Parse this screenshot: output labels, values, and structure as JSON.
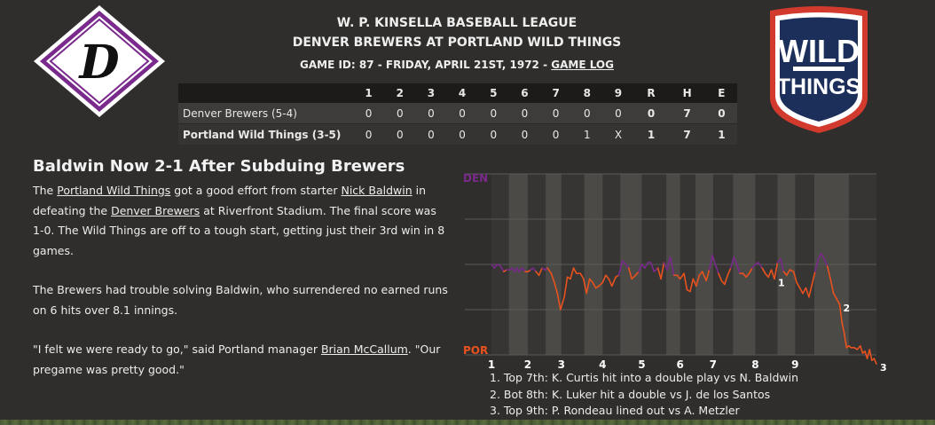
{
  "header": {
    "league": "W. P. KINSELLA BASEBALL LEAGUE",
    "matchup": "DENVER BREWERS AT PORTLAND WILD THINGS",
    "game_info": "GAME ID: 87 - FRIDAY, APRIL 21ST, 1972 -",
    "game_log_link": "GAME LOG"
  },
  "logos": {
    "away_letter": "D",
    "home_line1": "WILD",
    "home_line2": "THINGS"
  },
  "colors": {
    "away_purple": "#7a2a8c",
    "home_orange": "#e8521e",
    "home_navy": "#1c2f5a",
    "home_red": "#d23a2e"
  },
  "linescore": {
    "columns": [
      "1",
      "2",
      "3",
      "4",
      "5",
      "6",
      "7",
      "8",
      "9",
      "R",
      "H",
      "E"
    ],
    "rows": [
      {
        "team": "Denver Brewers (5-4)",
        "innings": [
          "0",
          "0",
          "0",
          "0",
          "0",
          "0",
          "0",
          "0",
          "0"
        ],
        "r": "0",
        "h": "7",
        "e": "0"
      },
      {
        "team": "Portland Wild Things (3-5)",
        "innings": [
          "0",
          "0",
          "0",
          "0",
          "0",
          "0",
          "0",
          "1",
          "X"
        ],
        "r": "1",
        "h": "7",
        "e": "1"
      }
    ]
  },
  "story": {
    "headline": "Baldwin Now 2-1 After Subduing Brewers",
    "p1": {
      "t1": "The ",
      "l1": "Portland Wild Things",
      "t2": " got a good effort from starter ",
      "l2": "Nick Baldwin",
      "t3": " in defeating the ",
      "l3": "Denver Brewers",
      "t4": " at Riverfront Stadium. The final score was 1-0. The Wild Things are off to a tough start, getting just their 3rd win in 8 games."
    },
    "p2": "The Brewers had trouble solving Baldwin, who surrendered no earned runs on 6 hits over 8.1 innings.",
    "p3": {
      "t1": "\"I felt we were ready to go,\" said Portland manager ",
      "l1": "Brian McCallum",
      "t2": ". \"Our pregame was pretty good.\""
    }
  },
  "chart_data": {
    "type": "line",
    "title": "",
    "top_label": "DEN",
    "bottom_label": "POR",
    "ylim": [
      0,
      100
    ],
    "x_ticks": [
      "1",
      "2",
      "3",
      "4",
      "5",
      "6",
      "7",
      "8",
      "9"
    ],
    "innings_bounds": [
      [
        0,
        2.28
      ],
      [
        2.28,
        4.73
      ],
      [
        4.73,
        7.06
      ],
      [
        7.06,
        9.11
      ],
      [
        9.11,
        12.1
      ],
      [
        12.1,
        14.5
      ],
      [
        14.5,
        16.8
      ],
      [
        16.8,
        19.6
      ],
      [
        19.6,
        22.8
      ],
      [
        22.8,
        24.6
      ],
      [
        24.6,
        26.6
      ],
      [
        26.6,
        28.9
      ],
      [
        28.9,
        31.5
      ],
      [
        31.5,
        34.4
      ],
      [
        34.4,
        37.3
      ],
      [
        37.3,
        39.6
      ],
      [
        39.6,
        42.1
      ],
      [
        42.1,
        46.6
      ]
    ],
    "wp": [
      [
        0,
        50
      ],
      [
        0.4,
        48
      ],
      [
        0.7,
        50
      ],
      [
        1.2,
        49
      ],
      [
        1.6,
        46
      ],
      [
        2.0,
        47
      ],
      [
        2.4,
        47
      ],
      [
        2.7,
        48
      ],
      [
        3.0,
        46
      ],
      [
        3.3,
        48
      ],
      [
        3.6,
        46
      ],
      [
        4.0,
        48
      ],
      [
        4.4,
        46
      ],
      [
        4.8,
        46
      ],
      [
        5.1,
        47
      ],
      [
        5.4,
        48
      ],
      [
        5.8,
        46
      ],
      [
        6.2,
        44
      ],
      [
        6.6,
        48
      ],
      [
        7.0,
        47
      ],
      [
        7.3,
        48
      ],
      [
        7.8,
        45
      ],
      [
        8.2,
        40
      ],
      [
        8.6,
        34
      ],
      [
        9.0,
        25
      ],
      [
        9.5,
        32
      ],
      [
        9.9,
        43
      ],
      [
        10.3,
        42
      ],
      [
        10.7,
        48
      ],
      [
        11.1,
        45
      ],
      [
        11.6,
        45
      ],
      [
        12.0,
        42
      ],
      [
        12.4,
        34
      ],
      [
        12.8,
        42
      ],
      [
        13.2,
        40
      ],
      [
        13.6,
        37
      ],
      [
        14.0,
        38
      ],
      [
        14.5,
        40
      ],
      [
        14.9,
        44
      ],
      [
        15.3,
        42
      ],
      [
        15.7,
        38
      ],
      [
        16.2,
        43
      ],
      [
        16.6,
        44
      ],
      [
        17.1,
        52
      ],
      [
        17.5,
        50
      ],
      [
        17.9,
        48
      ],
      [
        18.3,
        42
      ],
      [
        18.8,
        44
      ],
      [
        19.2,
        46
      ],
      [
        19.6,
        50
      ],
      [
        20.0,
        48
      ],
      [
        20.4,
        51
      ],
      [
        20.8,
        51
      ],
      [
        21.2,
        46
      ],
      [
        21.7,
        48
      ],
      [
        22.1,
        42
      ],
      [
        22.5,
        51
      ],
      [
        22.9,
        47
      ],
      [
        23.3,
        54
      ],
      [
        23.8,
        44
      ],
      [
        24.2,
        44
      ],
      [
        24.6,
        42
      ],
      [
        25.1,
        45
      ],
      [
        25.5,
        36
      ],
      [
        25.9,
        35
      ],
      [
        26.3,
        42
      ],
      [
        26.7,
        38
      ],
      [
        27.1,
        44
      ],
      [
        27.5,
        46
      ],
      [
        28.0,
        41
      ],
      [
        28.4,
        47
      ],
      [
        28.8,
        55
      ],
      [
        29.2,
        50
      ],
      [
        29.6,
        45
      ],
      [
        30.0,
        41
      ],
      [
        30.4,
        39
      ],
      [
        30.8,
        44
      ],
      [
        31.2,
        48
      ],
      [
        31.6,
        54
      ],
      [
        32.0,
        50
      ],
      [
        32.4,
        45
      ],
      [
        32.8,
        45
      ],
      [
        33.2,
        43
      ],
      [
        33.6,
        45
      ],
      [
        34.0,
        48
      ],
      [
        34.4,
        50
      ],
      [
        34.8,
        51
      ],
      [
        35.3,
        48
      ],
      [
        35.7,
        45
      ],
      [
        36.1,
        43
      ],
      [
        36.5,
        47
      ],
      [
        36.9,
        42
      ],
      [
        37.3,
        51
      ],
      [
        37.7,
        53
      ],
      [
        38.1,
        46
      ],
      [
        38.5,
        44
      ],
      [
        38.9,
        47
      ],
      [
        39.4,
        46
      ],
      [
        39.8,
        40
      ],
      [
        40.2,
        37
      ],
      [
        40.6,
        34
      ],
      [
        41.0,
        37
      ],
      [
        41.4,
        32
      ],
      [
        41.8,
        39
      ],
      [
        42.2,
        46
      ],
      [
        42.6,
        53
      ],
      [
        43.0,
        56
      ],
      [
        43.4,
        53
      ],
      [
        43.8,
        49
      ],
      [
        44.2,
        42
      ],
      [
        44.6,
        34
      ],
      [
        45.0,
        31
      ],
      [
        45.4,
        28
      ],
      [
        45.7,
        18
      ],
      [
        46.0,
        12
      ],
      [
        46.3,
        4
      ],
      [
        46.6,
        5
      ],
      [
        46.9,
        4
      ],
      [
        47.3,
        4
      ],
      [
        47.7,
        3
      ],
      [
        48.1,
        5
      ],
      [
        48.4,
        1
      ],
      [
        48.7,
        2
      ],
      [
        49.0,
        -2
      ],
      [
        49.3,
        3
      ],
      [
        49.6,
        -3
      ],
      [
        49.9,
        -2
      ],
      [
        50.2,
        -5
      ]
    ],
    "x_max": 50.2,
    "annotations": [
      {
        "label": "1",
        "x": 36.9
      },
      {
        "label": "2",
        "x": 45.4
      },
      {
        "label": "3",
        "x": 50.2
      }
    ],
    "notes": [
      "1. Top 7th: K. Curtis hit into a double play vs N. Baldwin",
      "2. Bot 8th: K. Luker hit a double vs J. de los Santos",
      "3. Top 9th: P. Rondeau lined out vs A. Metzler"
    ]
  }
}
